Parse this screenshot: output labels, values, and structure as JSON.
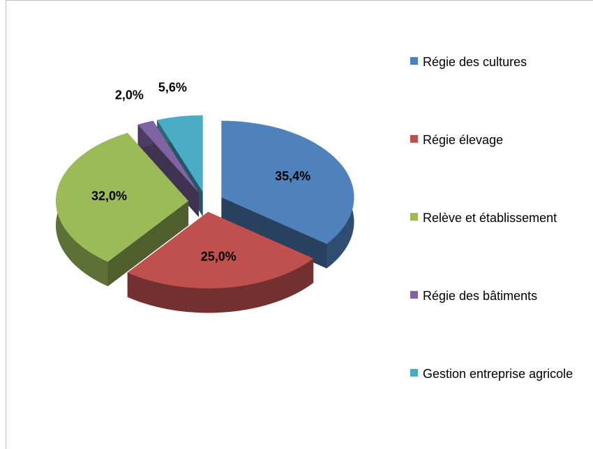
{
  "chart_data": {
    "type": "pie",
    "categories": [
      "Régie des cultures",
      "Régie élevage",
      "Relève et établissement",
      "Régie des bâtiments",
      "Gestion entreprise agricole"
    ],
    "values": [
      35.4,
      25.0,
      32.0,
      2.0,
      5.6
    ],
    "value_labels": [
      "35,4%",
      "25,0%",
      "32,0%",
      "2,0%",
      "5,6%"
    ],
    "colors": [
      "#4f81bd",
      "#c0504d",
      "#9bbb59",
      "#8064a2",
      "#4bacc6"
    ],
    "legend": "right"
  }
}
